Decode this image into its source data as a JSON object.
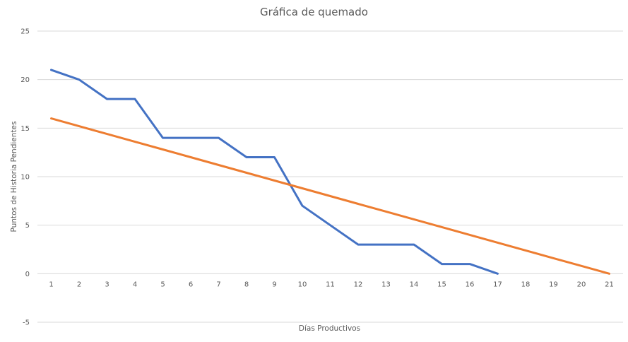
{
  "chart_data": {
    "type": "line",
    "title": "Gráfica de quemado",
    "xlabel": "Días Productivos",
    "ylabel": "Puntos de Historia Pendientes",
    "categories": [
      "1",
      "2",
      "3",
      "4",
      "5",
      "6",
      "7",
      "8",
      "9",
      "10",
      "11",
      "12",
      "13",
      "14",
      "15",
      "16",
      "17",
      "18",
      "19",
      "20",
      "21"
    ],
    "ylim": [
      -5,
      25
    ],
    "yticks": [
      -5,
      0,
      5,
      10,
      15,
      20,
      25
    ],
    "grid": true,
    "series": [
      {
        "color": "#4472C4",
        "values": [
          21,
          20,
          18,
          18,
          14,
          14,
          14,
          12,
          12,
          7,
          5,
          3,
          3,
          3,
          1,
          1,
          0,
          null,
          null,
          null,
          null
        ]
      },
      {
        "color": "#ED7D31",
        "values": [
          16,
          15.2,
          14.4,
          13.6,
          12.8,
          12,
          11.2,
          10.4,
          9.6,
          8.8,
          8,
          7.2,
          6.4,
          5.6,
          4.8,
          4,
          3.2,
          2.4,
          1.6,
          0.8,
          0
        ]
      }
    ]
  }
}
